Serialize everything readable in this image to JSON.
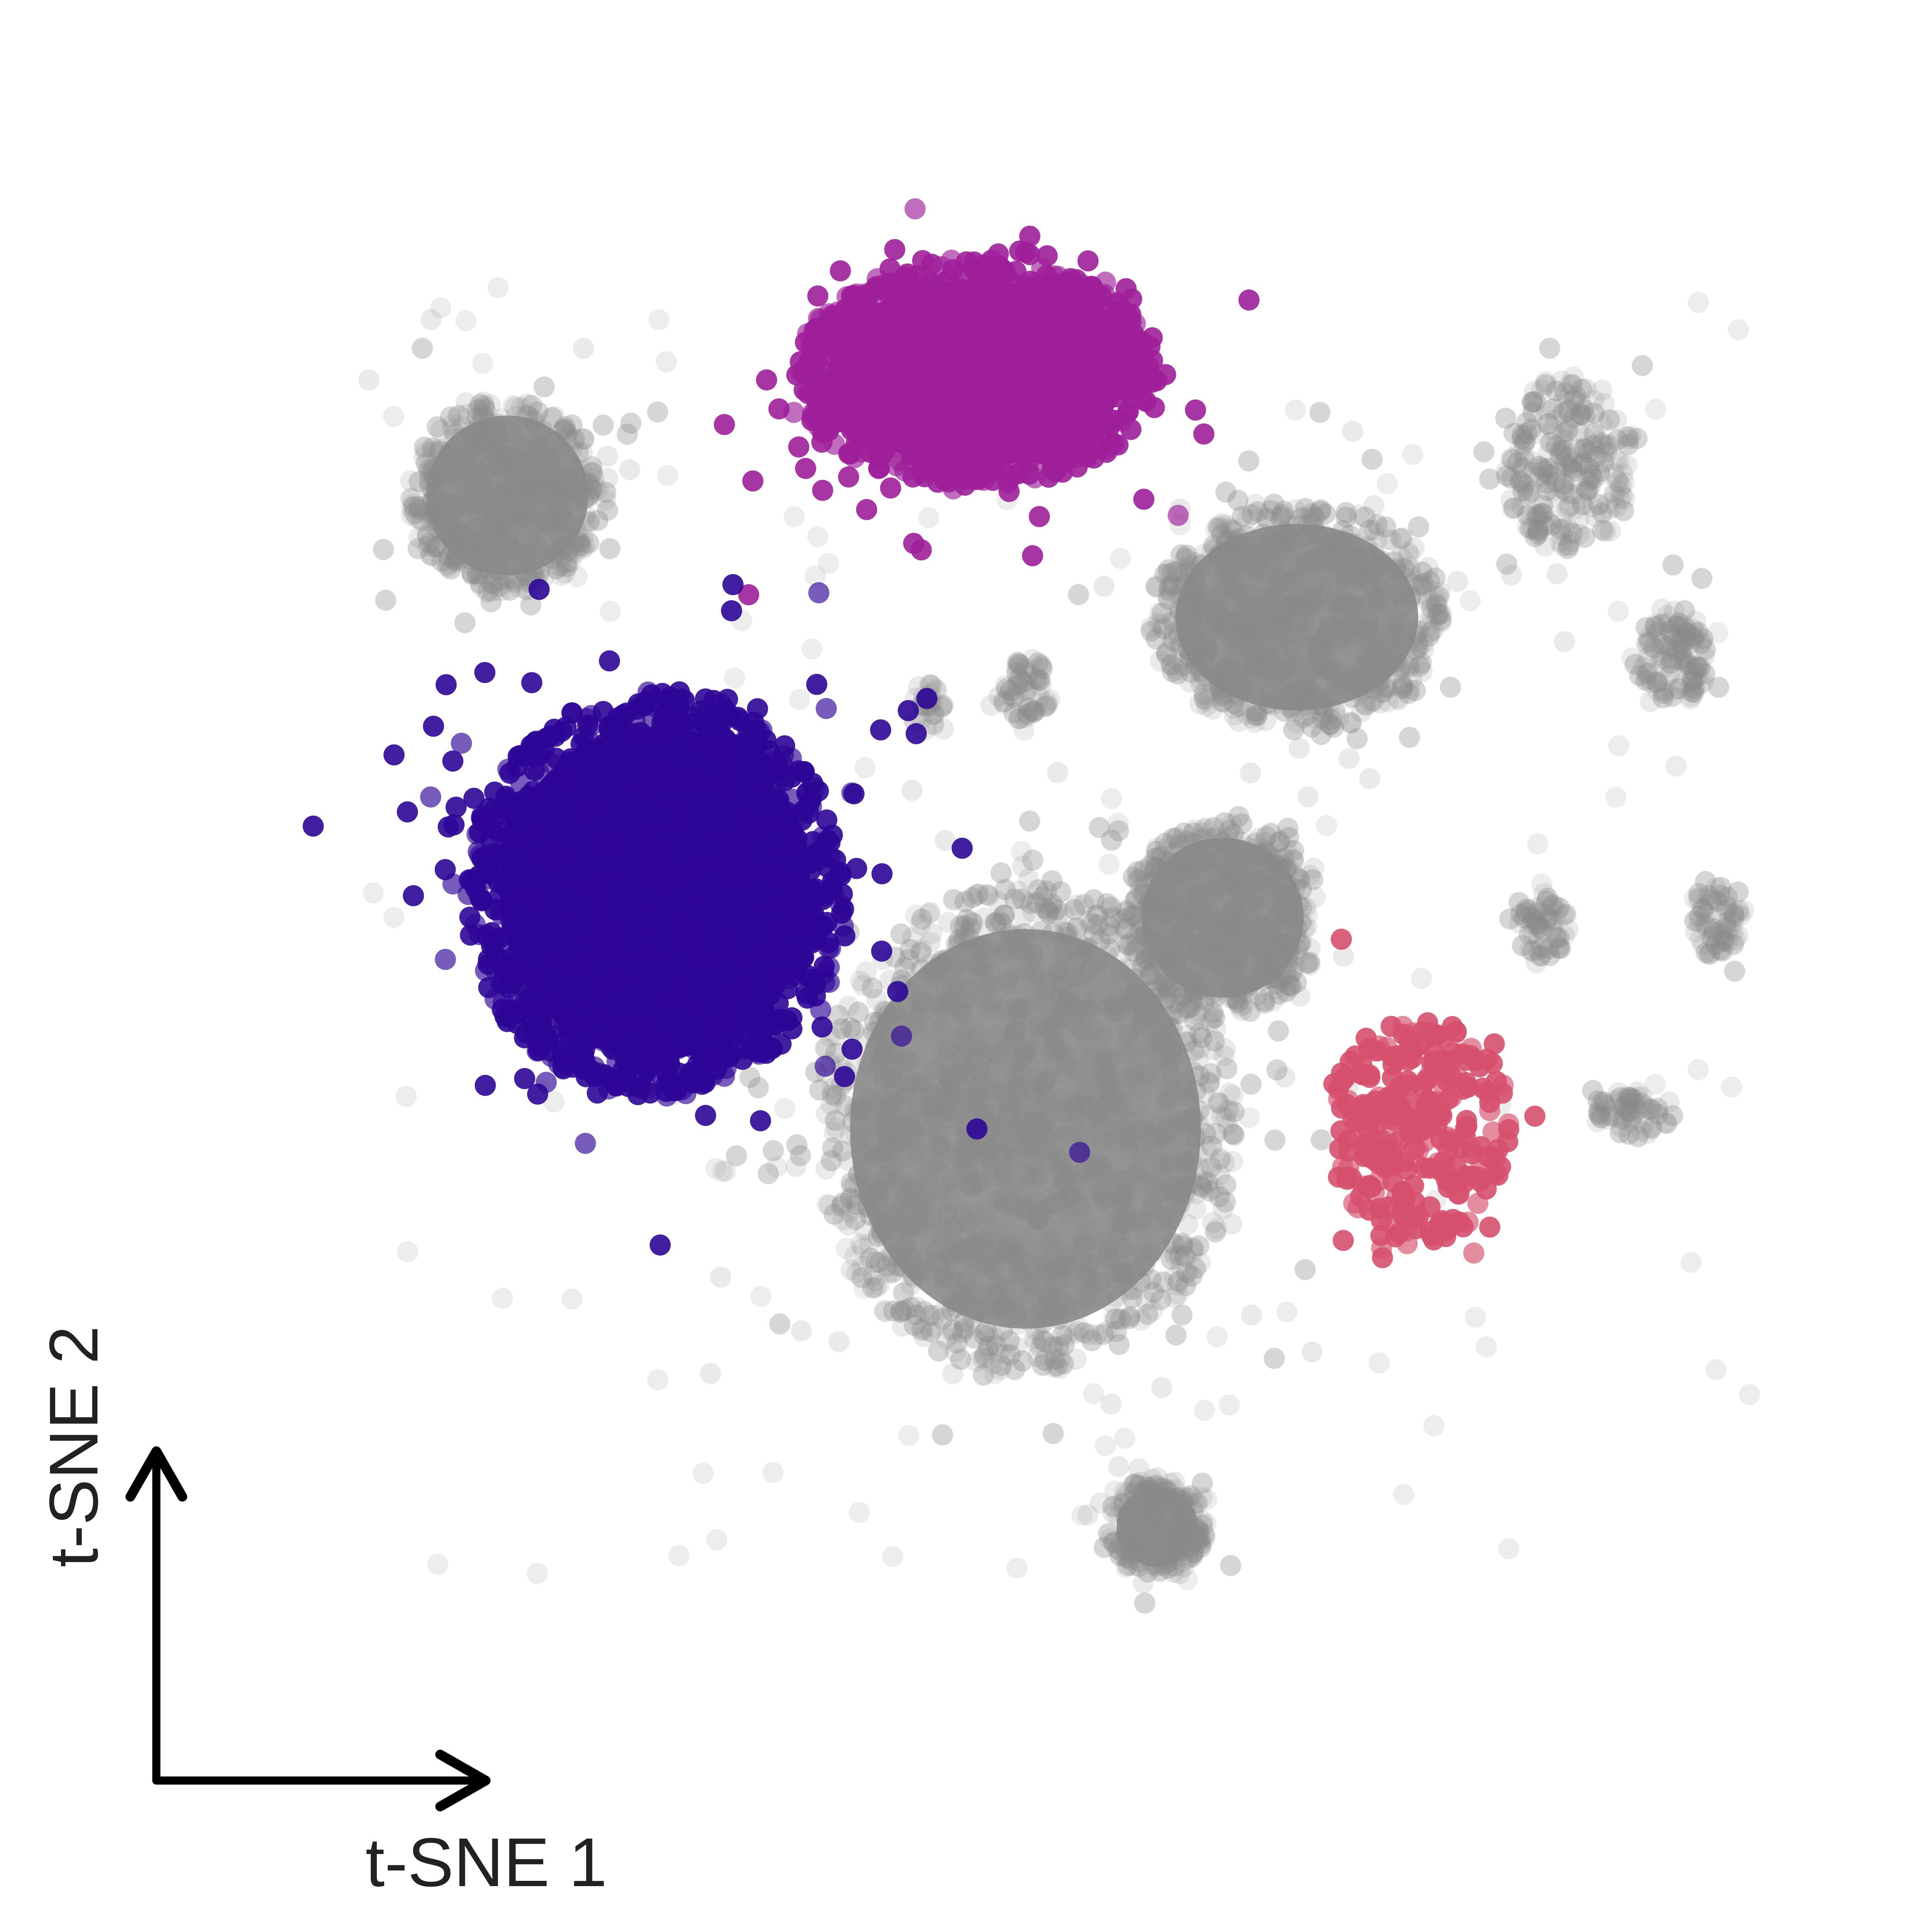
{
  "chart_data": {
    "type": "scatter",
    "title": "",
    "xlabel": "t-SNE 1",
    "ylabel": "t-SNE 2",
    "xlim": [
      0,
      100
    ],
    "ylim": [
      0,
      100
    ],
    "grid": false,
    "legend": "none",
    "axes_style": "corner arrows (no ticks)",
    "background_color": "#cccccc",
    "series": [
      {
        "color": "#8a8a8a",
        "highlighted": false,
        "clusters": [
          {
            "cx": 18.5,
            "cy": 77.0,
            "rx": 6.0,
            "ry": 6.0,
            "n": 500,
            "dense": true
          },
          {
            "cx": 50.0,
            "cy": 38.0,
            "rx": 13.0,
            "ry": 15.0,
            "n": 1400,
            "dense": true
          },
          {
            "cx": 62.0,
            "cy": 51.0,
            "rx": 6.0,
            "ry": 6.0,
            "n": 500,
            "dense": true
          },
          {
            "cx": 66.5,
            "cy": 69.5,
            "rx": 9.0,
            "ry": 7.0,
            "n": 750,
            "dense": true
          },
          {
            "cx": 83.0,
            "cy": 79.0,
            "rx": 4.0,
            "ry": 5.5,
            "n": 220,
            "dense": false
          },
          {
            "cx": 89.5,
            "cy": 67.0,
            "rx": 2.0,
            "ry": 3.0,
            "n": 110,
            "dense": false
          },
          {
            "cx": 81.5,
            "cy": 50.5,
            "rx": 1.5,
            "ry": 2.0,
            "n": 60,
            "dense": false
          },
          {
            "cx": 92.0,
            "cy": 51.0,
            "rx": 1.5,
            "ry": 2.5,
            "n": 60,
            "dense": false
          },
          {
            "cx": 87.0,
            "cy": 39.0,
            "rx": 2.5,
            "ry": 1.5,
            "n": 60,
            "dense": false
          },
          {
            "cx": 58.0,
            "cy": 13.5,
            "rx": 3.0,
            "ry": 3.0,
            "n": 220,
            "dense": true
          },
          {
            "cx": 50.0,
            "cy": 65.0,
            "rx": 1.5,
            "ry": 2.0,
            "n": 50,
            "dense": false
          },
          {
            "cx": 44.0,
            "cy": 64.0,
            "rx": 1.0,
            "ry": 1.5,
            "n": 25,
            "dense": false
          }
        ]
      },
      {
        "color": "#9e1f9a",
        "highlighted": true,
        "clusters": [
          {
            "cx": 47.0,
            "cy": 84.5,
            "rx": 11.0,
            "ry": 7.0,
            "n": 1100,
            "dense": true
          }
        ]
      },
      {
        "color": "#2e0596",
        "highlighted": true,
        "clusters": [
          {
            "cx": 27.5,
            "cy": 52.5,
            "rx": 11.5,
            "ry": 12.5,
            "n": 1500,
            "dense": true
          }
        ]
      },
      {
        "color": "#d6506e",
        "highlighted": true,
        "clusters": [
          {
            "cx": 74.0,
            "cy": 38.0,
            "rx": 5.5,
            "ry": 7.0,
            "n": 280,
            "dense": false
          }
        ]
      }
    ]
  }
}
